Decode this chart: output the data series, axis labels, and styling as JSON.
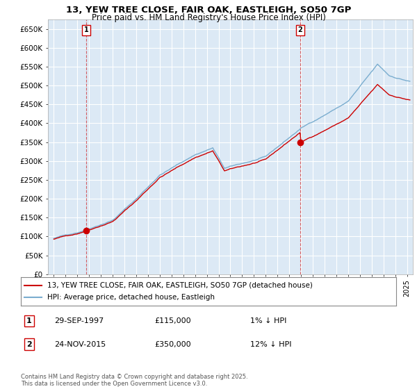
{
  "title": "13, YEW TREE CLOSE, FAIR OAK, EASTLEIGH, SO50 7GP",
  "subtitle": "Price paid vs. HM Land Registry's House Price Index (HPI)",
  "ylabel_ticks": [
    "£0",
    "£50K",
    "£100K",
    "£150K",
    "£200K",
    "£250K",
    "£300K",
    "£350K",
    "£400K",
    "£450K",
    "£500K",
    "£550K",
    "£600K",
    "£650K"
  ],
  "ytick_values": [
    0,
    50000,
    100000,
    150000,
    200000,
    250000,
    300000,
    350000,
    400000,
    450000,
    500000,
    550000,
    600000,
    650000
  ],
  "xlim": [
    1994.5,
    2025.5
  ],
  "ylim": [
    0,
    675000
  ],
  "sale1_t": 1997.75,
  "sale1_p": 115000,
  "sale2_t": 2015.92,
  "sale2_p": 350000,
  "legend_line1": "13, YEW TREE CLOSE, FAIR OAK, EASTLEIGH, SO50 7GP (detached house)",
  "legend_line2": "HPI: Average price, detached house, Eastleigh",
  "ann1_date": "29-SEP-1997",
  "ann1_price": "£115,000",
  "ann1_pct": "1% ↓ HPI",
  "ann2_date": "24-NOV-2015",
  "ann2_price": "£350,000",
  "ann2_pct": "12% ↓ HPI",
  "footer": "Contains HM Land Registry data © Crown copyright and database right 2025.\nThis data is licensed under the Open Government Licence v3.0.",
  "red_color": "#cc0000",
  "blue_color": "#7aadcf",
  "plot_bg_color": "#dce9f5",
  "fig_bg_color": "#ffffff",
  "grid_color": "#ffffff"
}
